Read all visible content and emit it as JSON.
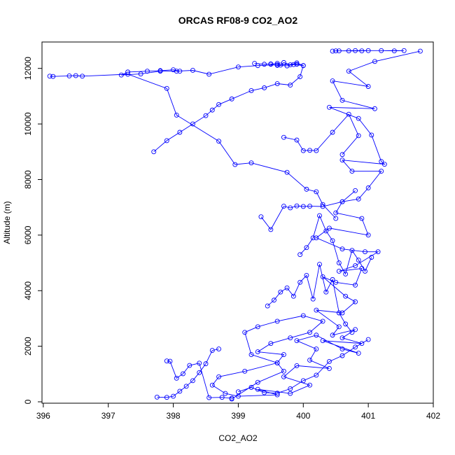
{
  "chart_data": {
    "type": "line",
    "title": "ORCAS RF08-9 CO2_AO2",
    "xlabel": "CO2_AO2",
    "ylabel": "Altitude (m)",
    "xlim": [
      395.98,
      402.0
    ],
    "ylim": [
      -50,
      12950
    ],
    "xticks": [
      "396",
      "397",
      "398",
      "399",
      "400",
      "401",
      "402"
    ],
    "yticks": [
      "0",
      "2000",
      "4000",
      "6000",
      "8000",
      "10000",
      "12000"
    ],
    "xtick_values": [
      396,
      397,
      398,
      399,
      400,
      401,
      402
    ],
    "ytick_values": [
      0,
      2000,
      4000,
      6000,
      8000,
      10000,
      12000
    ],
    "grid": false,
    "legend": "none",
    "marker": "open-circle",
    "color": "#0000ff",
    "series": [
      {
        "x": [
          401.8,
          401.1,
          400.7,
          401.0,
          400.45,
          400.6,
          401.1,
          400.4,
          400.85,
          401.05,
          401.2,
          401.25,
          400.6,
          400.75,
          401.2,
          401.0,
          400.85,
          400.6,
          400.5,
          400.9,
          401.0,
          400.4,
          400.2,
          400.6,
          400.95,
          401.15,
          400.8,
          400.55,
          400.9,
          400.8,
          400.5,
          400.3,
          400.65,
          400.8,
          400.6,
          400.2,
          400.55,
          400.45,
          400.8,
          400.6,
          400.9,
          400.3,
          400.85,
          400.6,
          400.2,
          399.9,
          400.2,
          400.1,
          400.4,
          399.9,
          399.7,
          400.1,
          399.8,
          399.3,
          399.6,
          399.0,
          398.8,
          398.6,
          398.7,
          399.1,
          399.6,
          399.7,
          399.3,
          399.5,
          399.8,
          400.1,
          400.3,
          400.0,
          399.6,
          399.3,
          399.1,
          399.2,
          399.6,
          399.7,
          399.3,
          398.9
        ],
        "y": [
          12620,
          12250,
          11900,
          11350,
          11550,
          10850,
          10550,
          10600,
          10200,
          9600,
          8650,
          8550,
          8700,
          8300,
          8300,
          7700,
          7300,
          7200,
          6800,
          6600,
          6000,
          6250,
          5900,
          5500,
          5400,
          5400,
          4900,
          4700,
          4800,
          4200,
          4300,
          4500,
          3800,
          3600,
          3200,
          3300,
          2700,
          2400,
          2600,
          2300,
          2100,
          2200,
          1750,
          1900,
          2400,
          2200,
          1900,
          1500,
          1200,
          1300,
          900,
          600,
          300,
          450,
          250,
          200,
          300,
          600,
          900,
          1100,
          1400,
          1700,
          1800,
          2100,
          2300,
          2500,
          2900,
          3100,
          2900,
          2700,
          2500,
          1700,
          1400,
          1100,
          700,
          100
        ]
      },
      {
        "x": [
          398.1,
          398.0,
          397.8,
          397.6,
          397.3,
          397.2,
          397.5,
          397.8,
          398.05,
          398.3,
          398.55,
          399.0,
          399.3,
          399.6,
          399.9,
          400.0,
          399.95,
          399.8,
          399.6,
          399.4,
          399.2,
          398.9,
          398.7,
          398.6,
          398.5,
          398.3,
          398.1,
          397.9,
          397.7
        ],
        "y": [
          11900,
          11950,
          11920,
          11900,
          11870,
          11760,
          11800,
          11900,
          11900,
          11930,
          11790,
          12050,
          12100,
          12130,
          12150,
          12100,
          11700,
          11400,
          11450,
          11300,
          11200,
          10900,
          10700,
          10500,
          10300,
          10000,
          9700,
          9400,
          9000
        ]
      },
      {
        "x": [
          396.1,
          396.15,
          396.4,
          396.5,
          396.6,
          397.3,
          397.9,
          398.05,
          398.7,
          398.95,
          399.2,
          399.75,
          400.05,
          400.2,
          400.3,
          400.5
        ],
        "y": [
          11720,
          11710,
          11730,
          11740,
          11720,
          11790,
          11280,
          10320,
          9380,
          8540,
          8600,
          8260,
          7650,
          7560,
          7100,
          6600
        ]
      },
      {
        "x": [
          400.45,
          400.5,
          400.7,
          400.9,
          401.0,
          401.2,
          401.4,
          401.55,
          400.8,
          400.55
        ],
        "y": [
          12620,
          12630,
          12630,
          12630,
          12640,
          12640,
          12630,
          12640,
          12640,
          12630
        ]
      },
      {
        "x": [
          399.25,
          399.4,
          399.5,
          399.6,
          399.65,
          399.7,
          399.8,
          399.9,
          400.0,
          399.85,
          399.75,
          399.6,
          399.5
        ],
        "y": [
          12180,
          12150,
          12160,
          12180,
          12120,
          12210,
          12130,
          12200,
          12100,
          12140,
          12090,
          12110,
          12150
        ]
      },
      {
        "x": [
          399.7,
          399.9,
          400.0,
          400.1,
          400.2,
          400.45,
          400.7,
          400.85,
          400.6
        ],
        "y": [
          9520,
          9420,
          9040,
          9050,
          9040,
          9700,
          10350,
          9580,
          8900
        ]
      },
      {
        "x": [
          399.35,
          399.5,
          399.7,
          399.8,
          399.9,
          400.0,
          400.1,
          400.3,
          400.6,
          400.8
        ],
        "y": [
          6660,
          6200,
          7040,
          6980,
          7050,
          7030,
          7040,
          7030,
          7200,
          7600
        ]
      },
      {
        "x": [
          397.75,
          397.9,
          398.0,
          398.1,
          398.2,
          398.3,
          398.4,
          398.5,
          398.6,
          398.7
        ],
        "y": [
          170,
          160,
          200,
          380,
          560,
          760,
          1050,
          1370,
          1850,
          1900
        ]
      },
      {
        "x": [
          397.9,
          397.95,
          398.05,
          398.15,
          398.25,
          398.4,
          398.55,
          398.75,
          398.9
        ],
        "y": [
          1470,
          1460,
          850,
          1010,
          1310,
          1390,
          150,
          160,
          130
        ]
      },
      {
        "x": [
          399.0,
          399.2,
          399.4,
          399.6,
          399.8,
          400.0,
          400.2,
          400.4,
          400.6,
          400.8,
          401.0
        ],
        "y": [
          360,
          520,
          330,
          310,
          470,
          760,
          960,
          1450,
          1660,
          1970,
          2240
        ]
      },
      {
        "x": [
          399.45,
          399.55,
          399.65,
          399.75,
          399.85,
          399.95,
          400.05,
          400.15,
          400.25,
          400.35,
          400.45,
          400.55,
          400.65,
          400.75
        ],
        "y": [
          3450,
          3660,
          3950,
          4100,
          3800,
          4300,
          4550,
          3700,
          4950,
          3950,
          4400,
          3200,
          2800,
          2500
        ]
      },
      {
        "x": [
          399.95,
          400.05,
          400.15,
          400.25,
          400.35,
          400.45,
          400.55,
          400.65,
          400.75,
          400.85,
          400.95,
          401.05
        ],
        "y": [
          5300,
          5550,
          5900,
          6700,
          6150,
          5800,
          5000,
          4600,
          5450,
          5100,
          4700,
          5200
        ]
      }
    ]
  }
}
